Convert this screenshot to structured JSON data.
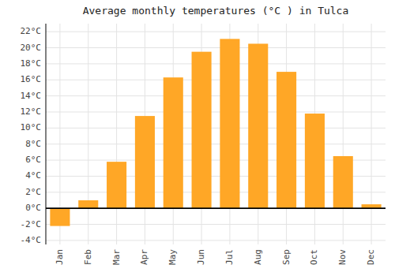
{
  "chart_data": {
    "type": "bar",
    "title": "Average monthly temperatures (°C ) in Tulca",
    "categories": [
      "Jan",
      "Feb",
      "Mar",
      "Apr",
      "May",
      "Jun",
      "Jul",
      "Aug",
      "Sep",
      "Oct",
      "Nov",
      "Dec"
    ],
    "values": [
      -2.2,
      1.0,
      5.8,
      11.5,
      16.3,
      19.5,
      21.1,
      20.5,
      17.0,
      11.8,
      6.5,
      0.5
    ],
    "color": "#FFA726",
    "ylim": [
      -4.5,
      23
    ],
    "yticks": [
      {
        "value": -4,
        "label": "-4°C"
      },
      {
        "value": -2,
        "label": "-2°C"
      },
      {
        "value": 0,
        "label": "0°C"
      },
      {
        "value": 2,
        "label": "2°C"
      },
      {
        "value": 4,
        "label": "4°C"
      },
      {
        "value": 6,
        "label": "6°C"
      },
      {
        "value": 8,
        "label": "8°C"
      },
      {
        "value": 10,
        "label": "10°C"
      },
      {
        "value": 12,
        "label": "12°C"
      },
      {
        "value": 14,
        "label": "14°C"
      },
      {
        "value": 16,
        "label": "16°C"
      },
      {
        "value": 18,
        "label": "18°C"
      },
      {
        "value": 20,
        "label": "20°C"
      },
      {
        "value": 22,
        "label": "22°C"
      }
    ],
    "grid": true
  }
}
